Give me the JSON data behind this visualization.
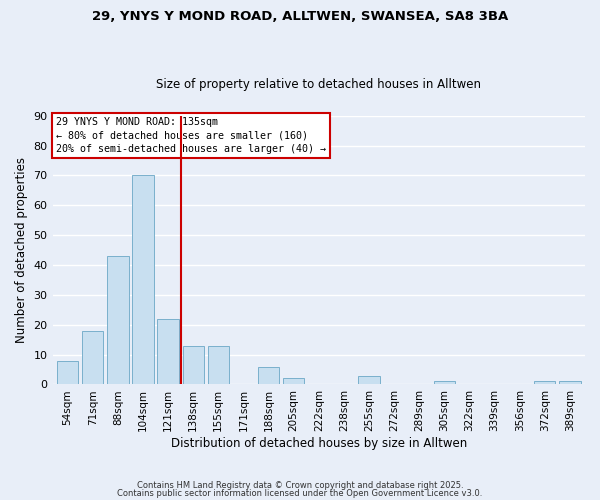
{
  "title_line1": "29, YNYS Y MOND ROAD, ALLTWEN, SWANSEA, SA8 3BA",
  "title_line2": "Size of property relative to detached houses in Alltwen",
  "xlabel": "Distribution of detached houses by size in Alltwen",
  "ylabel": "Number of detached properties",
  "bar_labels": [
    "54sqm",
    "71sqm",
    "88sqm",
    "104sqm",
    "121sqm",
    "138sqm",
    "155sqm",
    "171sqm",
    "188sqm",
    "205sqm",
    "222sqm",
    "238sqm",
    "255sqm",
    "272sqm",
    "289sqm",
    "305sqm",
    "322sqm",
    "339sqm",
    "356sqm",
    "372sqm",
    "389sqm"
  ],
  "bar_values": [
    8,
    18,
    43,
    70,
    22,
    13,
    13,
    0,
    6,
    2,
    0,
    0,
    3,
    0,
    0,
    1,
    0,
    0,
    0,
    1,
    1
  ],
  "bar_color": "#c8dff0",
  "bar_edge_color": "#7ab0cc",
  "vline_color": "#cc0000",
  "ylim": [
    0,
    90
  ],
  "yticks": [
    0,
    10,
    20,
    30,
    40,
    50,
    60,
    70,
    80,
    90
  ],
  "annotation_title": "29 YNYS Y MOND ROAD: 135sqm",
  "annotation_line2": "← 80% of detached houses are smaller (160)",
  "annotation_line3": "20% of semi-detached houses are larger (40) →",
  "annotation_box_color": "#ffffff",
  "annotation_box_edge": "#cc0000",
  "footer_line1": "Contains HM Land Registry data © Crown copyright and database right 2025.",
  "footer_line2": "Contains public sector information licensed under the Open Government Licence v3.0.",
  "background_color": "#e8eef8",
  "grid_color": "#ffffff"
}
